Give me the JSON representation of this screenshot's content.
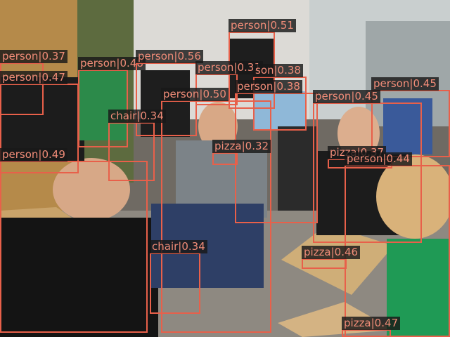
{
  "detections": [
    {
      "label": "person|0.51"
    },
    {
      "label": "person|0.37"
    },
    {
      "label": "person|0.48"
    },
    {
      "label": "person|0.56"
    },
    {
      "label": "person|0.31"
    },
    {
      "label": "son|0.38"
    },
    {
      "label": "person|0.47"
    },
    {
      "label": "person|0.50"
    },
    {
      "label": "person|0.38"
    },
    {
      "label": "person|0.45"
    },
    {
      "label": "person|0.45"
    },
    {
      "label": "chair|0.34"
    },
    {
      "label": "pizza|0.32"
    },
    {
      "label": "pizza|0.37"
    },
    {
      "label": "person|0.44"
    },
    {
      "label": "person|0.49"
    },
    {
      "label": "chair|0.34"
    },
    {
      "label": "pizza|0.46"
    },
    {
      "label": "pizza|0.47"
    }
  ]
}
